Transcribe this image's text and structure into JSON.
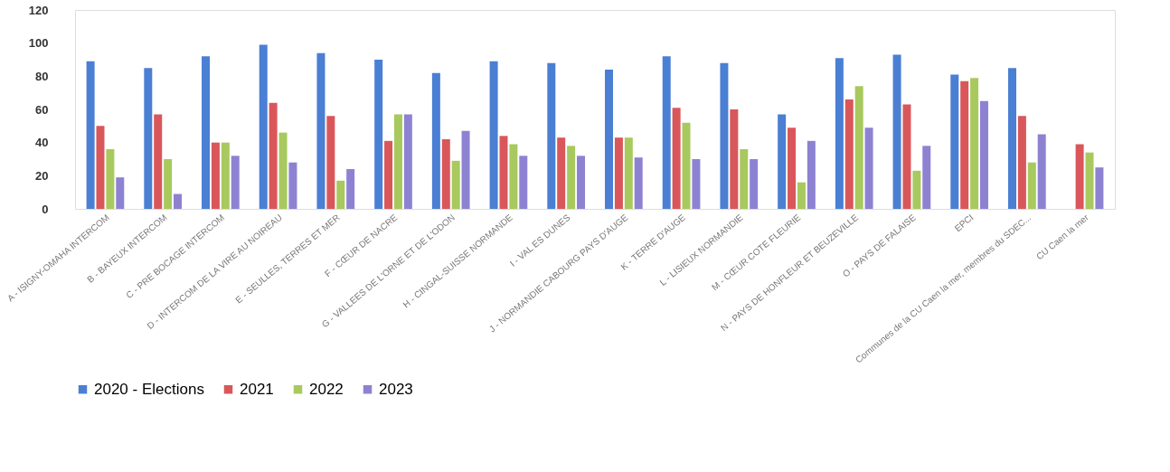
{
  "chart_data": {
    "type": "bar",
    "categories": [
      "A - ISIGNY-OMAHA INTERCOM",
      "B - BAYEUX INTERCOM",
      "C - PRE BOCAGE INTERCOM",
      "D - INTERCOM DE LA VIRE AU NOIREAU",
      "E - SEULLES, TERRES ET MER",
      "F - CŒUR DE NACRE",
      "G - VALLEES DE L'ORNE ET DE L'ODON",
      "H - CINGAL-SUISSE NORMANDE",
      "I - VAL ES DUNES",
      "J - NORMANDIE CABOURG PAYS D'AUGE",
      "K - TERRE D'AUGE",
      "L - LISIEUX NORMANDIE",
      "M - CŒUR COTE FLEURIE",
      "N - PAYS DE HONFLEUR ET BEUZEVILLE",
      "O - PAYS DE FALAISE",
      "EPCI",
      "Communes de la CU Caen la mer, membres du SDEC...",
      "CU Caen la mer"
    ],
    "series": [
      {
        "name": "2020 - Elections",
        "color": "#4a7fd4",
        "values": [
          89,
          85,
          92,
          99,
          94,
          90,
          82,
          89,
          88,
          84,
          92,
          88,
          57,
          91,
          93,
          81,
          85,
          null
        ]
      },
      {
        "name": "2021",
        "color": "#d9575a",
        "values": [
          50,
          57,
          40,
          64,
          56,
          41,
          42,
          44,
          43,
          43,
          61,
          60,
          49,
          66,
          63,
          77,
          56,
          39
        ]
      },
      {
        "name": "2022",
        "color": "#a8c95e",
        "values": [
          36,
          30,
          40,
          46,
          17,
          57,
          29,
          39,
          38,
          43,
          52,
          36,
          16,
          74,
          23,
          79,
          28,
          34
        ]
      },
      {
        "name": "2023",
        "color": "#8d82d2",
        "values": [
          19,
          9,
          32,
          28,
          24,
          57,
          47,
          32,
          32,
          31,
          30,
          30,
          41,
          49,
          38,
          65,
          45,
          25
        ]
      }
    ],
    "ylim": [
      0,
      120
    ],
    "yticks": [
      0,
      20,
      40,
      60,
      80,
      100,
      120
    ],
    "grid": false,
    "legend": "bottom"
  }
}
